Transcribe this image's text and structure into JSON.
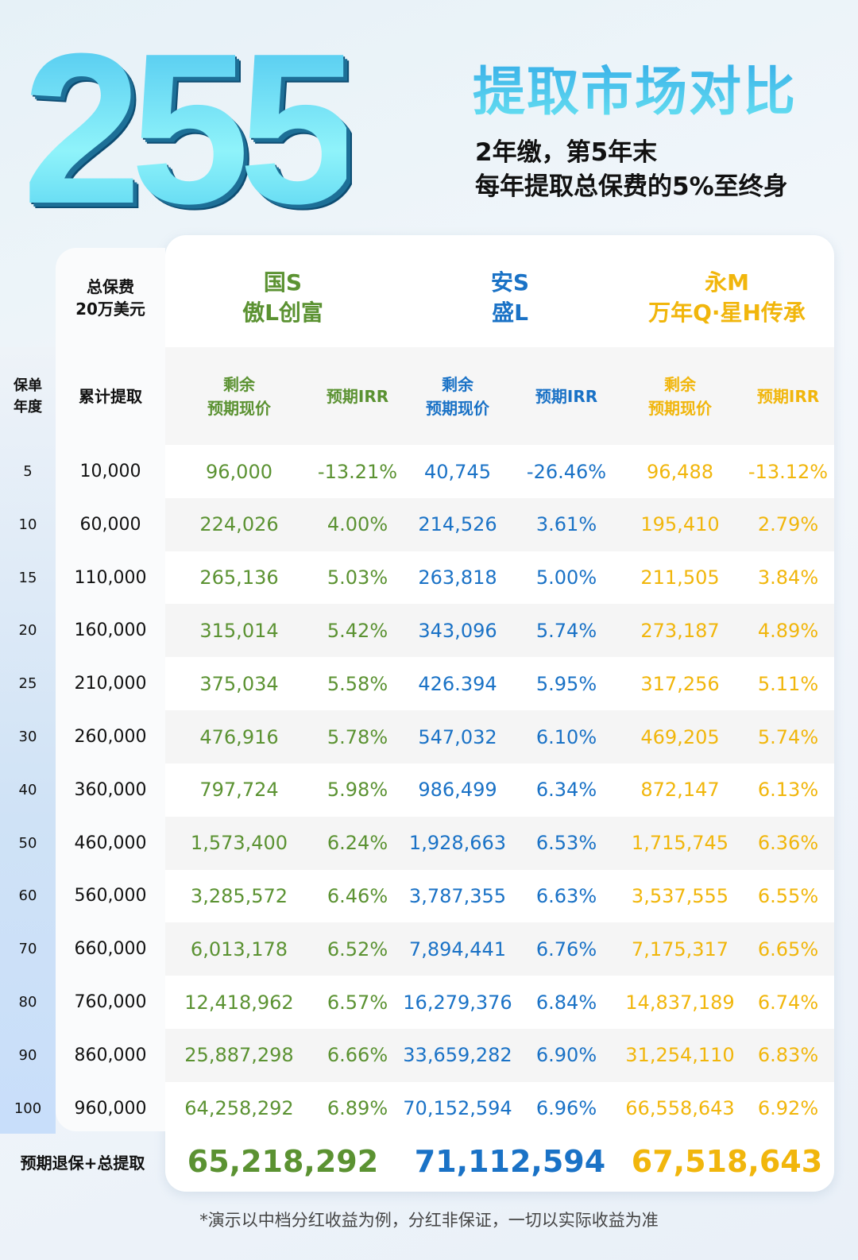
{
  "hero": {
    "number": "255",
    "title": "提取市场对比",
    "line1": "2年缴，第5年末",
    "line2": "每年提取总保费的5%至终身"
  },
  "colors": {
    "product1": "#5b9232",
    "product2": "#1a72c6",
    "product3": "#f1b60c"
  },
  "table": {
    "corner": [
      "总保费",
      "20万美元"
    ],
    "products": [
      {
        "line1": "国S",
        "line2": "傲L创富"
      },
      {
        "line1": "安S",
        "line2": "盛L"
      },
      {
        "line1": "永M",
        "line2": "万年Q·星H传承"
      }
    ],
    "headers": {
      "year": [
        "保单",
        "年度"
      ],
      "withdrawal": "累计提取",
      "value": [
        "剩余",
        "预期现价"
      ],
      "irr": "预期IRR"
    },
    "rows": [
      [
        "5",
        "10,000",
        "96,000",
        "-13.21%",
        "40,745",
        "-26.46%",
        "96,488",
        "-13.12%"
      ],
      [
        "10",
        "60,000",
        "224,026",
        "4.00%",
        "214,526",
        "3.61%",
        "195,410",
        "2.79%"
      ],
      [
        "15",
        "110,000",
        "265,136",
        "5.03%",
        "263,818",
        "5.00%",
        "211,505",
        "3.84%"
      ],
      [
        "20",
        "160,000",
        "315,014",
        "5.42%",
        "343,096",
        "5.74%",
        "273,187",
        "4.89%"
      ],
      [
        "25",
        "210,000",
        "375,034",
        "5.58%",
        "426.394",
        "5.95%",
        "317,256",
        "5.11%"
      ],
      [
        "30",
        "260,000",
        "476,916",
        "5.78%",
        "547,032",
        "6.10%",
        "469,205",
        "5.74%"
      ],
      [
        "40",
        "360,000",
        "797,724",
        "5.98%",
        "986,499",
        "6.34%",
        "872,147",
        "6.13%"
      ],
      [
        "50",
        "460,000",
        "1,573,400",
        "6.24%",
        "1,928,663",
        "6.53%",
        "1,715,745",
        "6.36%"
      ],
      [
        "60",
        "560,000",
        "3,285,572",
        "6.46%",
        "3,787,355",
        "6.63%",
        "3,537,555",
        "6.55%"
      ],
      [
        "70",
        "660,000",
        "6,013,178",
        "6.52%",
        "7,894,441",
        "6.76%",
        "7,175,317",
        "6.65%"
      ],
      [
        "80",
        "760,000",
        "12,418,962",
        "6.57%",
        "16,279,376",
        "6.84%",
        "14,837,189",
        "6.74%"
      ],
      [
        "90",
        "860,000",
        "25,887,298",
        "6.66%",
        "33,659,282",
        "6.90%",
        "31,254,110",
        "6.83%"
      ],
      [
        "100",
        "960,000",
        "64,258,292",
        "6.89%",
        "70,152,594",
        "6.96%",
        "66,558,643",
        "6.92%"
      ]
    ],
    "total": {
      "label": "预期退保+总提取",
      "values": [
        "65,218,292",
        "71,112,594",
        "67,518,643"
      ]
    }
  },
  "footnote": "*演示以中档分红收益为例，分红非保证，一切以实际收益为准"
}
